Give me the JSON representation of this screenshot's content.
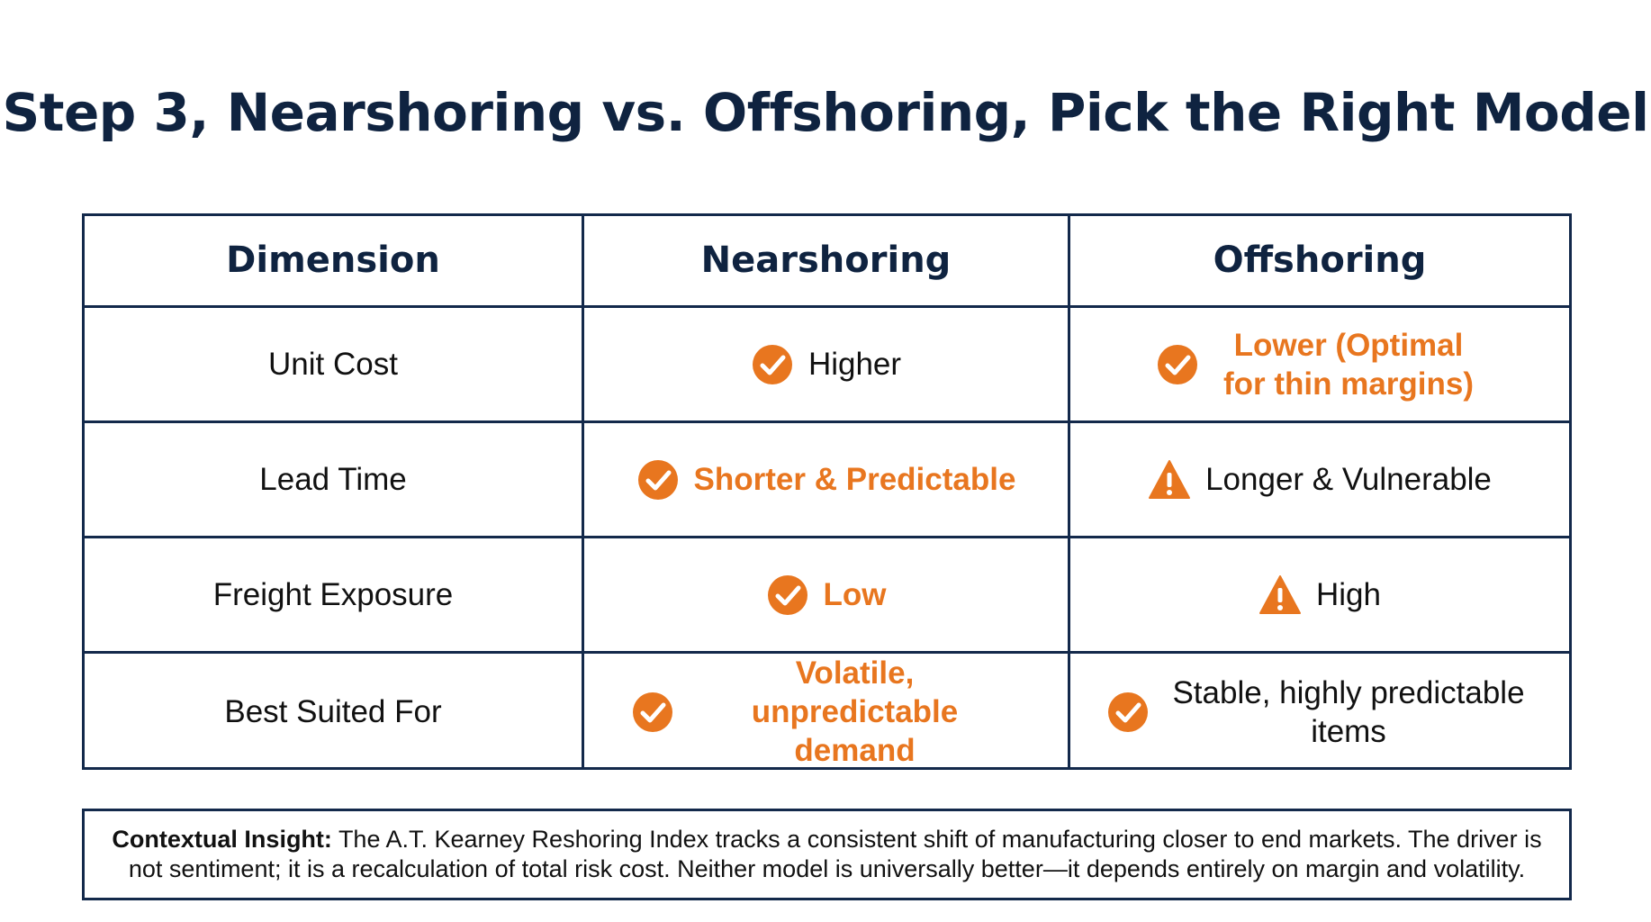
{
  "slide": {
    "title": "Step 3, Nearshoring vs. Offshoring, Pick the Right Model"
  },
  "table": {
    "headers": [
      "Dimension",
      "Nearshoring",
      "Offshoring"
    ],
    "rows": [
      {
        "dimension": "Unit Cost",
        "nearshoring": {
          "icon": "check-circle-icon",
          "text": "Higher",
          "highlight": false
        },
        "offshoring": {
          "icon": "check-circle-icon",
          "text": "Lower (Optimal for thin margins)",
          "highlight": true
        }
      },
      {
        "dimension": "Lead Time",
        "nearshoring": {
          "icon": "check-circle-icon",
          "text": "Shorter & Predictable",
          "highlight": true
        },
        "offshoring": {
          "icon": "warning-triangle-icon",
          "text": "Longer & Vulnerable",
          "highlight": false
        }
      },
      {
        "dimension": "Freight Exposure",
        "nearshoring": {
          "icon": "check-circle-icon",
          "text": "Low",
          "highlight": true
        },
        "offshoring": {
          "icon": "warning-triangle-icon",
          "text": "High",
          "highlight": false
        }
      },
      {
        "dimension": "Best Suited For",
        "nearshoring": {
          "icon": "check-circle-icon",
          "text": "Volatile, unpredictable demand",
          "highlight": true
        },
        "offshoring": {
          "icon": "check-circle-icon",
          "text": "Stable, highly predictable items",
          "highlight": false
        }
      }
    ]
  },
  "insight": {
    "label": "Contextual Insight:",
    "text": "The A.T. Kearney Reshoring Index tracks a consistent shift of manufacturing closer to end markets. The driver is not sentiment; it is a recalculation of total risk cost. Neither model is universally better—it depends entirely on margin and volatility."
  },
  "colors": {
    "title": "#0f2340",
    "border": "#13294b",
    "accent": "#e8761f",
    "text": "#111111"
  }
}
